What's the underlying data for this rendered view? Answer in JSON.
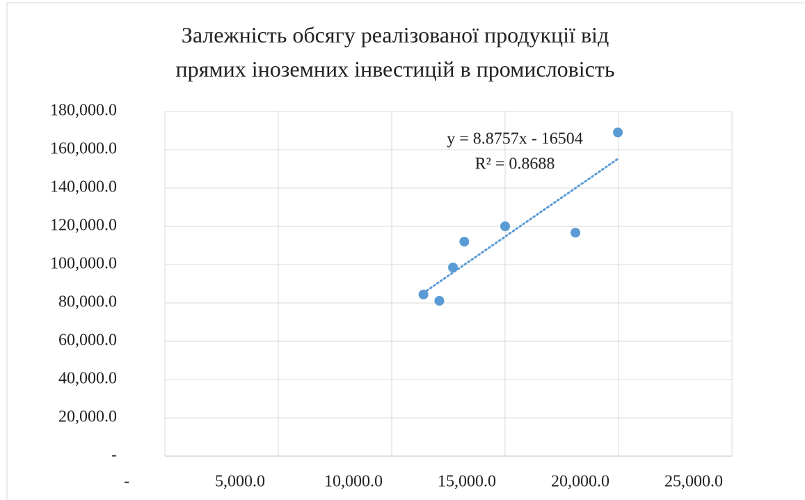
{
  "chart_data": {
    "type": "scatter",
    "title": "Залежність обсягу реалізованої продукції від прямих іноземних інвестицій в промисловість",
    "series": [
      {
        "color": "#5b9bd5",
        "x": [
          11400,
          12100,
          12700,
          13200,
          15000,
          18100,
          19970
        ],
        "values": [
          84400,
          81100,
          98500,
          112000,
          120000,
          116700,
          169000
        ]
      }
    ],
    "trendline": {
      "type": "linear",
      "equation": "y = 8.8757x - 16504",
      "r_squared": "R² = 0.8688"
    },
    "xlim": [
      0,
      25000
    ],
    "xticks": [
      {
        "value": 0,
        "label": "-"
      },
      {
        "value": 5000,
        "label": "5,000.0"
      },
      {
        "value": 10000,
        "label": "10,000.0"
      },
      {
        "value": 15000,
        "label": "15,000.0"
      },
      {
        "value": 20000,
        "label": "20,000.0"
      },
      {
        "value": 25000,
        "label": "25,000.0"
      }
    ],
    "ylim": [
      0,
      180000
    ],
    "yticks": [
      {
        "value": 0,
        "label": "-"
      },
      {
        "value": 20000,
        "label": "20,000.0"
      },
      {
        "value": 40000,
        "label": "40,000.0"
      },
      {
        "value": 60000,
        "label": "60,000.0"
      },
      {
        "value": 80000,
        "label": "80,000.0"
      },
      {
        "value": 100000,
        "label": "100,000.0"
      },
      {
        "value": 120000,
        "label": "120,000.0"
      },
      {
        "value": 140000,
        "label": "140,000.0"
      },
      {
        "value": 160000,
        "label": "160,000.0"
      },
      {
        "value": 180000,
        "label": "180,000.0"
      }
    ],
    "grid": true
  }
}
